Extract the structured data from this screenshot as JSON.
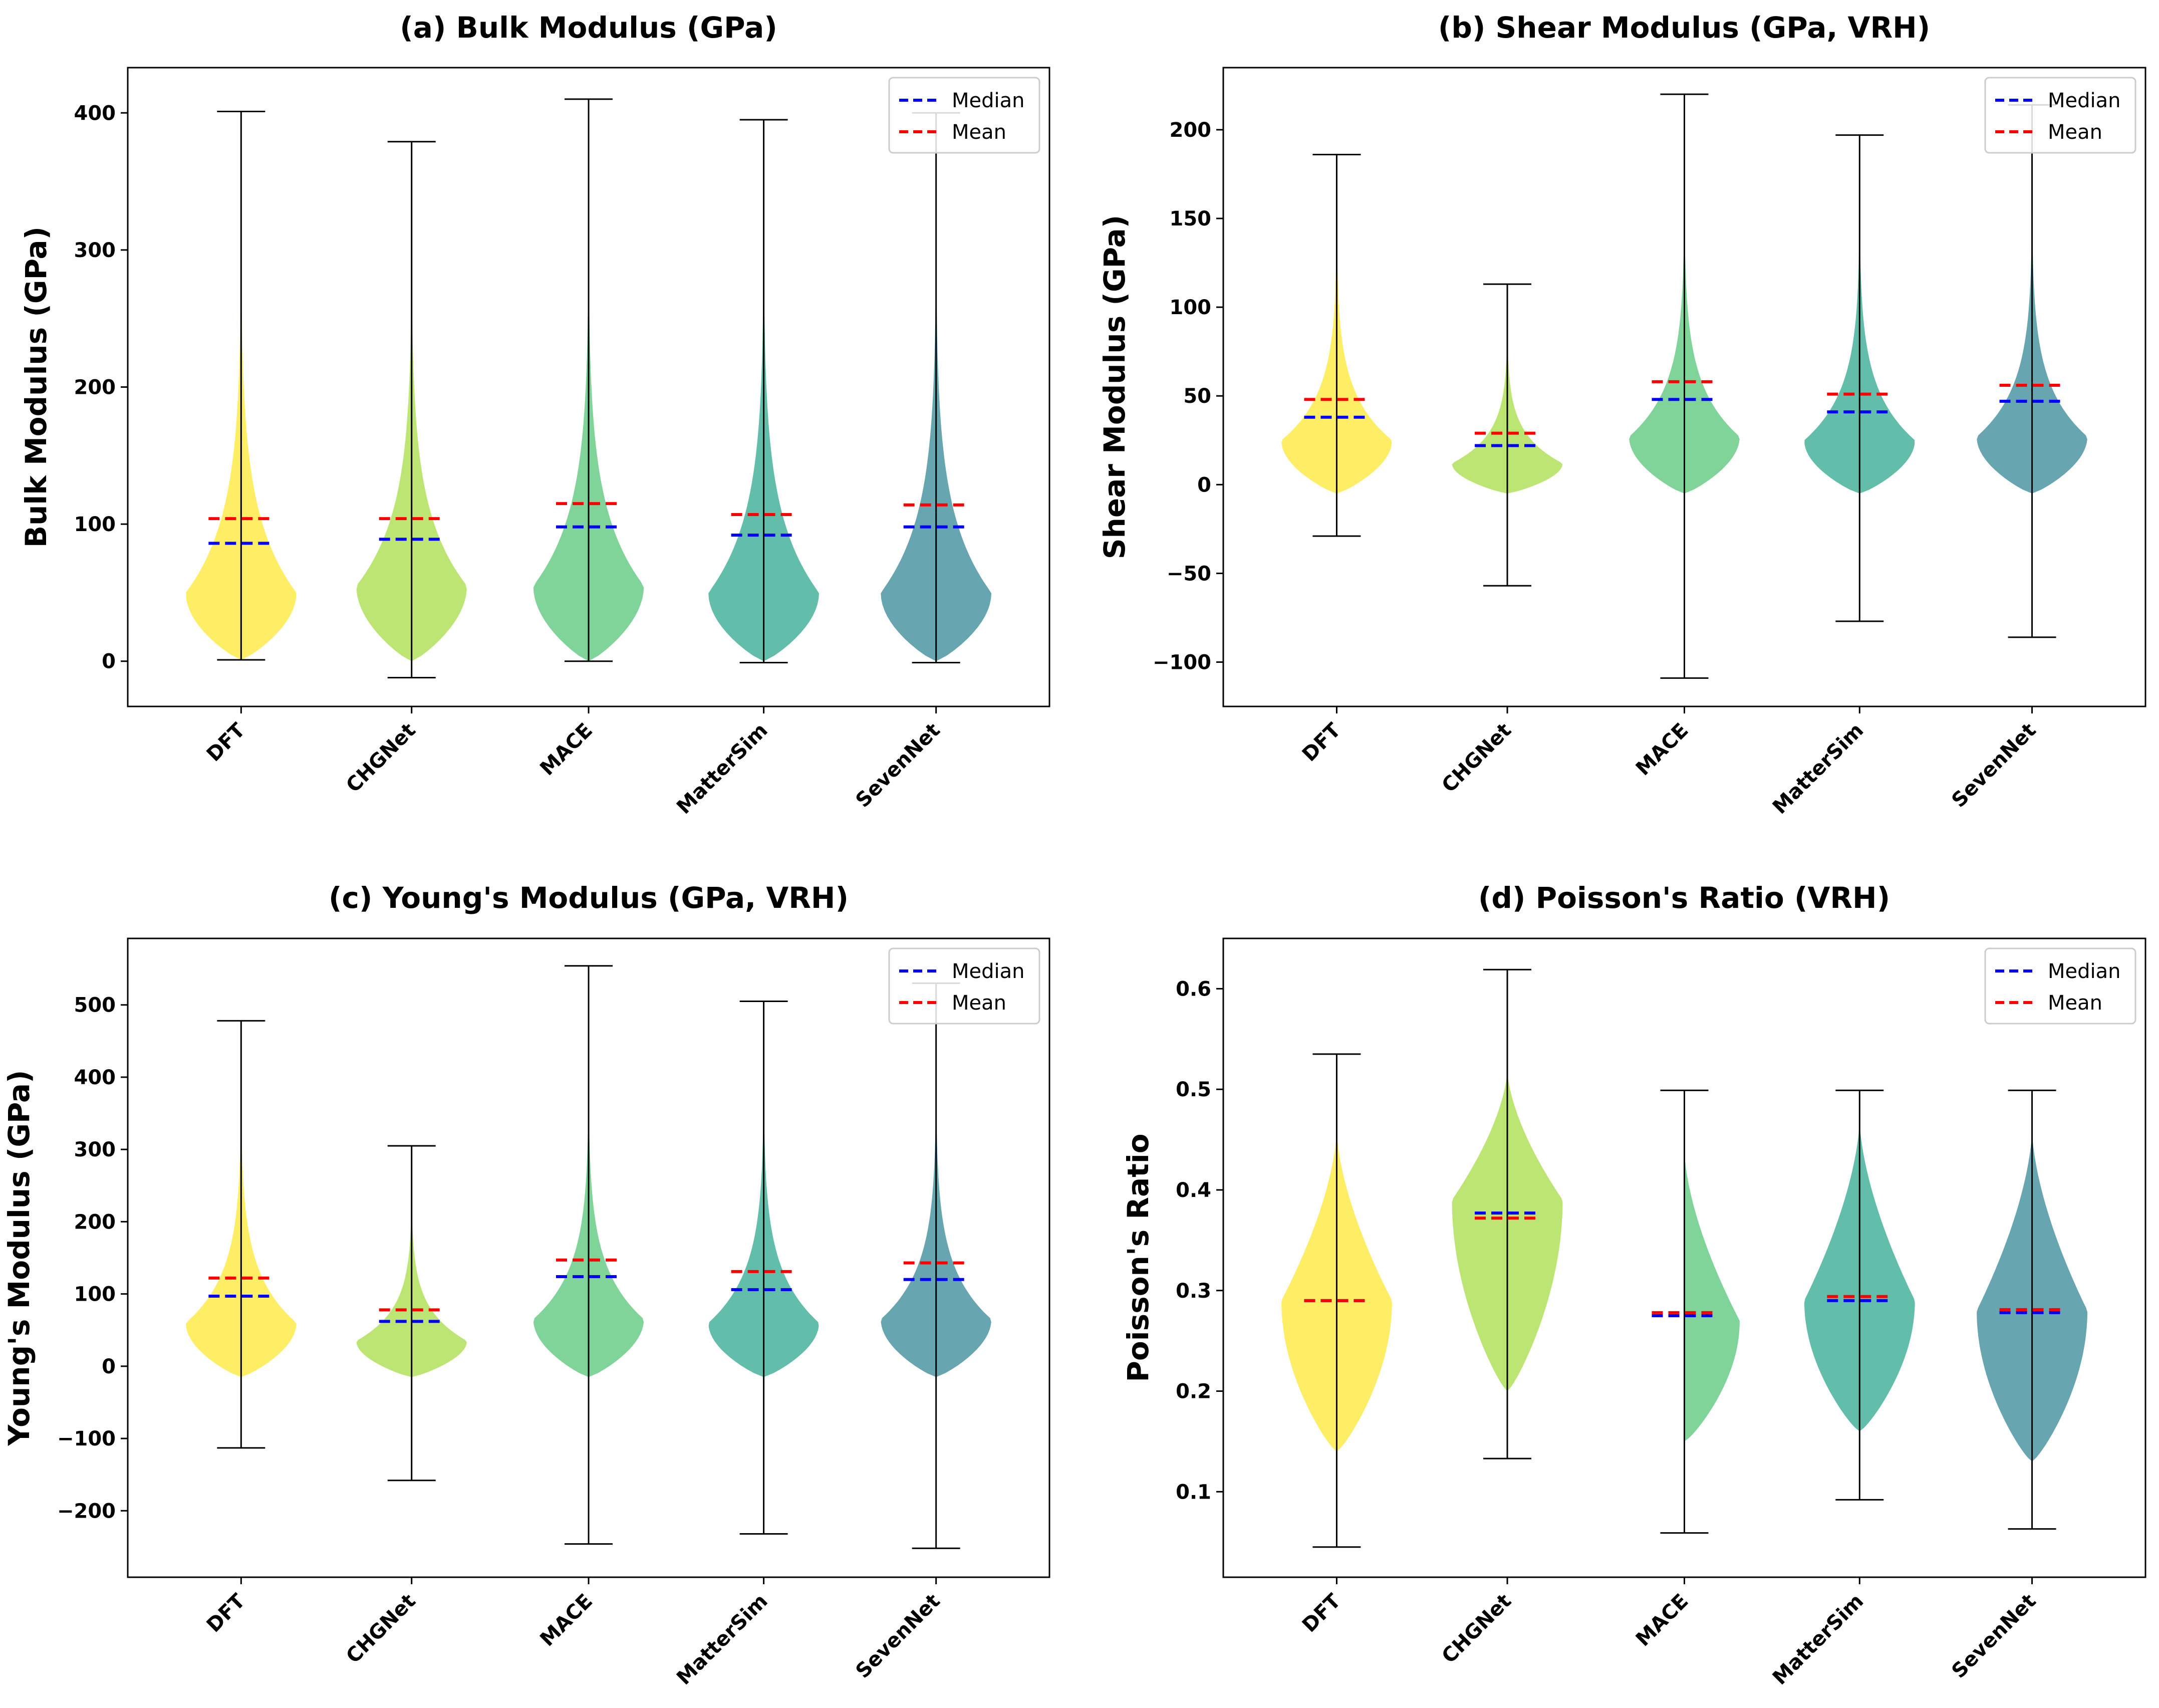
{
  "chart_data": [
    {
      "type": "violin",
      "title": "(a) Bulk Modulus (GPa)",
      "ylabel": "Bulk Modulus (GPa)",
      "xlabel": "",
      "ylim": [
        -33,
        433
      ],
      "yticks": [
        0,
        100,
        200,
        300,
        400
      ],
      "categories": [
        "DFT",
        "CHGNet",
        "MACE",
        "MatterSim",
        "SevenNet"
      ],
      "colors": [
        "#fde725",
        "#a0da39",
        "#4ac16d",
        "#1fa187",
        "#277f8e"
      ],
      "min": [
        1,
        -12,
        0,
        -1,
        -1
      ],
      "max": [
        401,
        379,
        410,
        395,
        400
      ],
      "median": [
        86,
        89,
        98,
        92,
        98
      ],
      "mean": [
        104,
        104,
        115,
        107,
        114
      ],
      "kde_support": [
        0,
        330
      ],
      "peak": [
        50,
        55,
        55,
        50,
        50
      ],
      "kde_shape": "right-skewed",
      "legend": [
        "Median",
        "Mean"
      ],
      "legend_loc": "upper right"
    },
    {
      "type": "violin",
      "title": "(b) Shear Modulus (GPa, VRH)",
      "ylabel": "Shear Modulus (GPa)",
      "xlabel": "",
      "ylim": [
        -125,
        235
      ],
      "yticks": [
        -100,
        -50,
        0,
        50,
        100,
        150,
        200
      ],
      "categories": [
        "DFT",
        "CHGNet",
        "MACE",
        "MatterSim",
        "SevenNet"
      ],
      "colors": [
        "#fde725",
        "#a0da39",
        "#4ac16d",
        "#1fa187",
        "#277f8e"
      ],
      "min": [
        -29,
        -57,
        -109,
        -77,
        -86
      ],
      "max": [
        186,
        113,
        220,
        197,
        214
      ],
      "median": [
        38,
        22,
        48,
        41,
        47
      ],
      "mean": [
        48,
        29,
        58,
        51,
        56
      ],
      "kde_support": [
        -5,
        170
      ],
      "peak": [
        25,
        12,
        27,
        25,
        27
      ],
      "kde_shape": "right-skewed",
      "legend": [
        "Median",
        "Mean"
      ],
      "legend_loc": "upper right"
    },
    {
      "type": "violin",
      "title": "(c) Young's Modulus (GPa, VRH)",
      "ylabel": "Young's Modulus (GPa)",
      "xlabel": "",
      "ylim": [
        -292,
        592
      ],
      "yticks": [
        -200,
        -100,
        0,
        100,
        200,
        300,
        400,
        500
      ],
      "categories": [
        "DFT",
        "CHGNet",
        "MACE",
        "MatterSim",
        "SevenNet"
      ],
      "colors": [
        "#fde725",
        "#a0da39",
        "#4ac16d",
        "#1fa187",
        "#277f8e"
      ],
      "min": [
        -113,
        -158,
        -246,
        -232,
        -252
      ],
      "max": [
        478,
        305,
        554,
        505,
        530
      ],
      "median": [
        97,
        62,
        124,
        106,
        120
      ],
      "mean": [
        122,
        78,
        147,
        131,
        143
      ],
      "kde_support": [
        -15,
        420
      ],
      "peak": [
        60,
        35,
        65,
        60,
        65
      ],
      "kde_shape": "right-skewed",
      "legend": [
        "Median",
        "Mean"
      ],
      "legend_loc": "upper right"
    },
    {
      "type": "violin",
      "title": "(d) Poisson's Ratio (VRH)",
      "ylabel": "Poisson's Ratio",
      "xlabel": "",
      "ylim": [
        0.015,
        0.65
      ],
      "yticks": [
        0.1,
        0.2,
        0.3,
        0.4,
        0.5,
        0.6
      ],
      "categories": [
        "DFT",
        "CHGNet",
        "MACE",
        "MatterSim",
        "SevenNet"
      ],
      "colors": [
        "#fde725",
        "#a0da39",
        "#4ac16d",
        "#1fa187",
        "#277f8e"
      ],
      "min": [
        0.045,
        0.133,
        0.059,
        0.092,
        0.063
      ],
      "max": [
        0.535,
        0.619,
        0.499,
        0.499,
        0.499
      ],
      "median": [
        0.29,
        0.377,
        0.275,
        0.29,
        0.278
      ],
      "mean": [
        0.29,
        0.372,
        0.278,
        0.294,
        0.281
      ],
      "kde_lo": [
        0.14,
        0.2,
        0.15,
        0.16,
        0.13
      ],
      "kde_hi": [
        0.46,
        0.52,
        0.44,
        0.47,
        0.46
      ],
      "peak": [
        0.29,
        0.39,
        0.27,
        0.29,
        0.28
      ],
      "kde_shape": "near-symmetric",
      "legend": [
        "Median",
        "Mean"
      ],
      "legend_loc": "upper right"
    }
  ]
}
